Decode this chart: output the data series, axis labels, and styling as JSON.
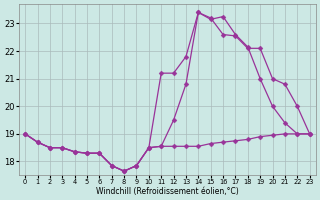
{
  "xlabel": "Windchill (Refroidissement éolien,°C)",
  "bg_color": "#cce8e4",
  "grid_color": "#aabbbb",
  "line_color": "#993399",
  "x_ticks": [
    0,
    1,
    2,
    3,
    4,
    5,
    6,
    7,
    8,
    9,
    10,
    11,
    12,
    13,
    14,
    15,
    16,
    17,
    18,
    19,
    20,
    21,
    22,
    23
  ],
  "y_ticks": [
    18,
    19,
    20,
    21,
    22,
    23
  ],
  "ylim": [
    17.5,
    23.7
  ],
  "xlim": [
    -0.5,
    23.5
  ],
  "line1_x": [
    0,
    1,
    2,
    3,
    4,
    5,
    6,
    7,
    8,
    9,
    10,
    11,
    12,
    13,
    14,
    15,
    16,
    17,
    18,
    19,
    20,
    21,
    22,
    23
  ],
  "line1_y": [
    19.0,
    18.7,
    18.5,
    18.5,
    18.35,
    18.3,
    18.3,
    17.85,
    17.65,
    17.85,
    18.5,
    18.55,
    18.55,
    18.55,
    18.55,
    18.65,
    18.7,
    18.75,
    18.8,
    18.9,
    18.95,
    19.0,
    19.0,
    19.0
  ],
  "line2_x": [
    0,
    1,
    2,
    3,
    4,
    5,
    6,
    7,
    8,
    9,
    10,
    11,
    12,
    13,
    14,
    15,
    16,
    17,
    18,
    19,
    20,
    21,
    22,
    23
  ],
  "line2_y": [
    19.0,
    18.7,
    18.5,
    18.5,
    18.35,
    18.3,
    18.3,
    17.85,
    17.65,
    17.85,
    18.5,
    18.55,
    19.5,
    20.8,
    23.4,
    23.15,
    23.25,
    22.6,
    22.15,
    21.0,
    20.0,
    19.4,
    19.0,
    19.0
  ],
  "line3_x": [
    0,
    1,
    2,
    3,
    4,
    5,
    6,
    7,
    8,
    9,
    10,
    11,
    12,
    13,
    14,
    15,
    16,
    17,
    18,
    19,
    20,
    21,
    22,
    23
  ],
  "line3_y": [
    19.0,
    18.7,
    18.5,
    18.5,
    18.35,
    18.3,
    18.3,
    17.85,
    17.65,
    17.85,
    18.5,
    21.2,
    21.2,
    21.8,
    23.4,
    23.2,
    22.6,
    22.55,
    22.1,
    22.1,
    21.0,
    20.8,
    20.0,
    19.0
  ]
}
